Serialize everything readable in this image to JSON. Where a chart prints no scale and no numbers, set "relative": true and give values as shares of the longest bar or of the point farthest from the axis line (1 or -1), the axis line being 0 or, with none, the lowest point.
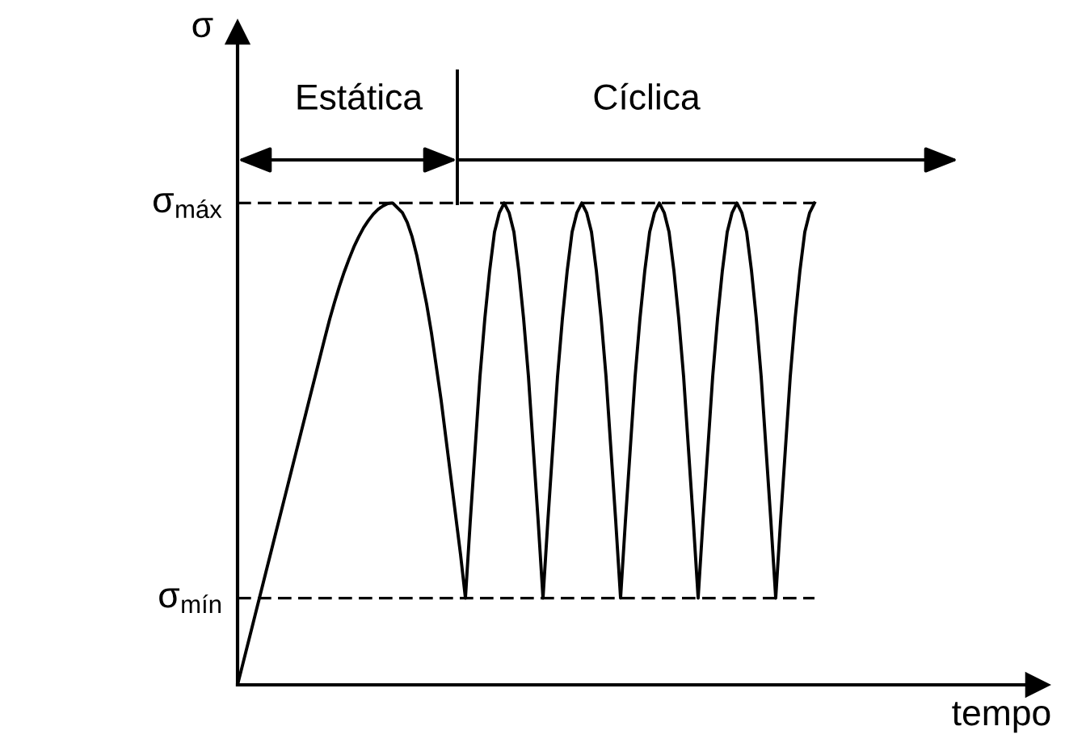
{
  "chart_data": {
    "type": "line",
    "relative": true,
    "xlabel": "tempo",
    "ylabel": "σ",
    "categories": [
      null,
      null,
      null,
      null,
      null,
      null,
      null,
      null,
      null,
      null,
      null,
      null,
      null,
      null,
      null,
      null,
      null,
      null,
      null,
      null,
      null,
      null,
      null,
      null,
      null,
      null,
      null,
      null,
      null,
      null,
      null,
      null,
      null,
      null,
      null,
      null,
      null,
      null,
      null,
      null,
      null,
      null,
      null,
      null,
      null,
      null,
      null,
      null,
      null,
      null,
      null,
      null,
      null,
      null,
      null,
      null,
      null,
      null,
      null,
      null,
      null,
      null,
      null,
      null,
      null,
      null,
      null,
      null,
      null,
      null,
      null,
      null,
      null,
      null,
      null,
      null,
      null,
      null,
      null,
      null,
      null,
      null,
      null,
      null,
      null,
      null,
      null,
      null,
      null,
      null,
      null,
      null,
      null,
      null,
      null,
      null,
      null,
      null,
      null,
      null,
      null,
      null,
      null,
      null,
      null,
      null,
      null,
      null,
      null,
      null,
      null,
      null,
      null,
      null,
      null,
      null,
      null,
      null,
      null,
      null
    ],
    "series": [
      {
        "color": "#000000",
        "values": [
          0,
          0.04,
          0.08,
          0.12,
          0.16,
          0.2,
          0.24,
          0.28,
          0.32,
          0.36,
          0.4,
          0.44,
          0.48,
          0.52,
          0.56,
          0.6,
          0.64,
          0.68,
          0.72,
          0.759,
          0.794,
          0.827,
          0.857,
          0.884,
          0.909,
          0.93,
          0.949,
          0.964,
          0.977,
          0.987,
          0.994,
          0.999,
          1,
          0.99,
          0.98,
          0.96,
          0.93,
          0.89,
          0.84,
          0.79,
          0.73,
          0.66,
          0.59,
          0.51,
          0.43,
          0.35,
          0.27,
          0.18,
          0.34,
          0.49,
          0.64,
          0.76,
          0.86,
          0.94,
          0.98,
          1,
          0.98,
          0.94,
          0.86,
          0.76,
          0.64,
          0.49,
          0.34,
          0.18,
          0.34,
          0.49,
          0.64,
          0.76,
          0.86,
          0.94,
          0.98,
          1,
          0.98,
          0.94,
          0.86,
          0.76,
          0.64,
          0.49,
          0.34,
          0.18,
          0.34,
          0.49,
          0.64,
          0.76,
          0.86,
          0.94,
          0.98,
          1,
          0.98,
          0.94,
          0.86,
          0.76,
          0.64,
          0.49,
          0.34,
          0.18,
          0.34,
          0.49,
          0.64,
          0.76,
          0.86,
          0.94,
          0.98,
          1,
          0.98,
          0.94,
          0.86,
          0.76,
          0.64,
          0.49,
          0.34,
          0.18,
          0.34,
          0.49,
          0.64,
          0.76,
          0.86,
          0.94,
          0.98,
          1
        ]
      }
    ],
    "ref_lines": [
      {
        "axis": "y",
        "value": 1,
        "label": "σ$_{máx}$",
        "line_style": "dashed",
        "color": "#000000"
      },
      {
        "axis": "y",
        "value": 0.18,
        "label": "σ$_{mín}$",
        "line_style": "dashed",
        "color": "#000000"
      }
    ],
    "annotations": [
      "Estática",
      "Cíclica"
    ]
  }
}
